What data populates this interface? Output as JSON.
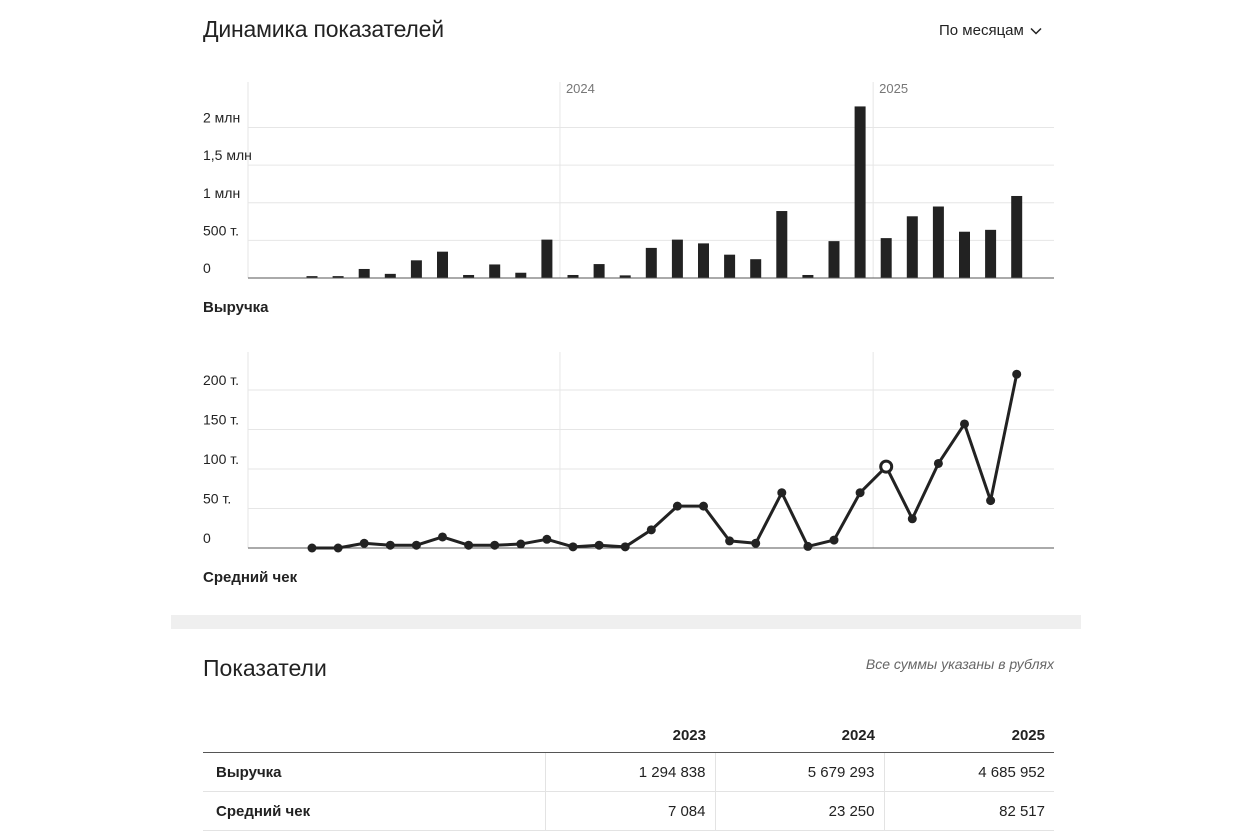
{
  "header": {
    "title": "Динамика показателей",
    "period_select": "По месяцам"
  },
  "icons": {
    "period_chevron": "chevron-down-icon"
  },
  "colors": {
    "bars": "#222222",
    "grid": "#e6e6e6",
    "axis": "#555555",
    "muted": "#777777"
  },
  "charts": {
    "revenue_caption": "Выручка",
    "avg_check_caption": "Средний чек"
  },
  "chart_data": [
    {
      "type": "bar",
      "title": "",
      "caption": "Выручка",
      "year_markers": [
        {
          "label": "2024",
          "before_index": 10
        },
        {
          "label": "2025",
          "before_index": 22
        }
      ],
      "y_ticks": [
        {
          "value": 0,
          "label": "0"
        },
        {
          "value": 500000,
          "label": "500 т."
        },
        {
          "value": 1000000,
          "label": "1 млн"
        },
        {
          "value": 1500000,
          "label": "1,5 млн"
        },
        {
          "value": 2000000,
          "label": "2 млн"
        }
      ],
      "ylim": [
        0,
        2300000
      ],
      "grid": true,
      "values": [
        25000,
        25000,
        120000,
        55000,
        235000,
        350000,
        40000,
        180000,
        70000,
        510000,
        40000,
        185000,
        35000,
        400000,
        510000,
        460000,
        310000,
        250000,
        890000,
        40000,
        490000,
        2280000,
        530000,
        820000,
        950000,
        615000,
        640000,
        1090000
      ]
    },
    {
      "type": "line",
      "title": "",
      "caption": "Средний чек",
      "year_markers": [
        {
          "label": "2024",
          "before_index": 10
        },
        {
          "label": "2025",
          "before_index": 22
        }
      ],
      "y_ticks": [
        {
          "value": 0,
          "label": "0"
        },
        {
          "value": 50000,
          "label": "50 т."
        },
        {
          "value": 100000,
          "label": "100 т."
        },
        {
          "value": 150000,
          "label": "150 т."
        },
        {
          "value": 200000,
          "label": "200 т."
        }
      ],
      "ylim": [
        0,
        250000
      ],
      "grid": true,
      "highlight_index": 22,
      "values": [
        0,
        0,
        6000,
        3500,
        3500,
        14000,
        3500,
        3500,
        5000,
        11000,
        1500,
        3500,
        1500,
        23000,
        53000,
        53000,
        9000,
        6000,
        70000,
        2000,
        10000,
        70000,
        103000,
        37000,
        107000,
        157000,
        60000,
        220000
      ]
    }
  ],
  "metrics": {
    "title": "Показатели",
    "note": "Все суммы указаны в рублях",
    "columns": [
      "",
      "2023",
      "2024",
      "2025"
    ],
    "rows": [
      {
        "label": "Выручка",
        "values": [
          "1 294 838",
          "5 679 293",
          "4 685 952"
        ]
      },
      {
        "label": "Средний чек",
        "values": [
          "7 084",
          "23 250",
          "82 517"
        ]
      }
    ]
  }
}
